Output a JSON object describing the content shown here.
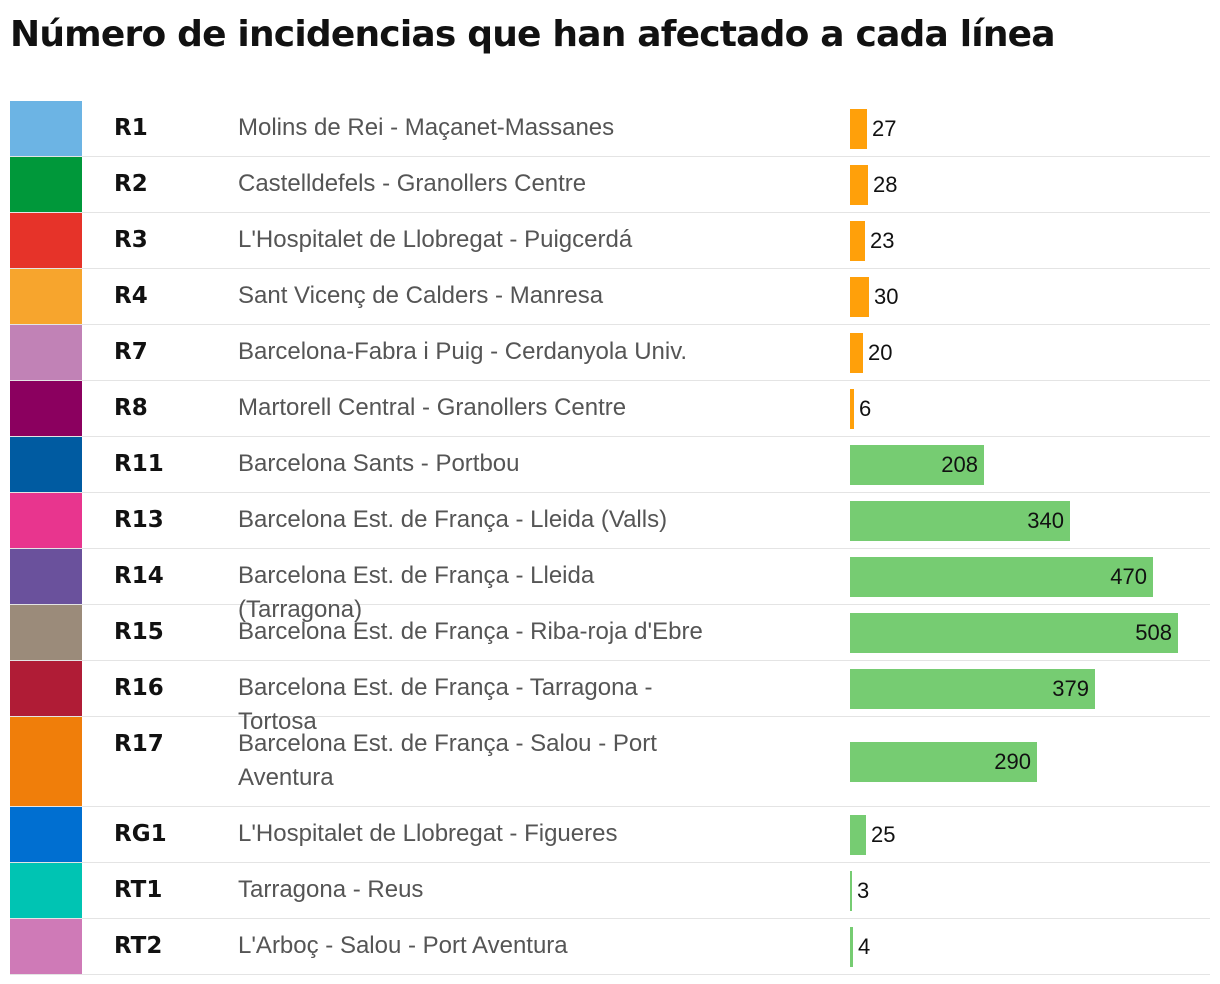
{
  "chart_data": {
    "type": "bar",
    "orientation": "horizontal",
    "title": "Número de incidencias que han afectado a cada línea",
    "categories": [
      "R1",
      "R2",
      "R3",
      "R4",
      "R7",
      "R8",
      "R11",
      "R13",
      "R14",
      "R15",
      "R16",
      "R17",
      "RG1",
      "RT1",
      "RT2"
    ],
    "descriptions": [
      "Molins de Rei - Maçanet-Massanes",
      "Castelldefels - Granollers Centre",
      "L'Hospitalet de Llobregat - Puigcerdá",
      "Sant Vicenç de Calders - Manresa",
      "Barcelona-Fabra i Puig - Cerdanyola Univ.",
      "Martorell Central - Granollers Centre",
      "Barcelona Sants - Portbou",
      "Barcelona Est. de França - Lleida (Valls)",
      "Barcelona Est. de França - Lleida (Tarragona)",
      "Barcelona Est. de França - Riba-roja d'Ebre",
      "Barcelona Est. de França - Tarragona - Tortosa",
      "Barcelona Est. de França - Salou - Port Aventura",
      "L'Hospitalet de Llobregat - Figueres",
      "Tarragona - Reus",
      "L'Arboç - Salou - Port Aventura"
    ],
    "values": [
      27,
      28,
      23,
      30,
      20,
      6,
      208,
      340,
      470,
      508,
      379,
      290,
      25,
      3,
      4
    ],
    "line_colors": [
      "#6cb4e4",
      "#00983a",
      "#e63329",
      "#f7a52d",
      "#c182b6",
      "#8b005f",
      "#005ba1",
      "#e8358e",
      "#6a519c",
      "#9b8b7a",
      "#b01c36",
      "#f07e0a",
      "#006fd1",
      "#00c4b3",
      "#cf7ab7"
    ],
    "bar_colors": [
      "#ffa00a",
      "#ffa00a",
      "#ffa00a",
      "#ffa00a",
      "#ffa00a",
      "#ffa00a",
      "#76cc72",
      "#76cc72",
      "#76cc72",
      "#76cc72",
      "#76cc72",
      "#76cc72",
      "#76cc72",
      "#76cc72",
      "#76cc72"
    ],
    "xlim": [
      0,
      508
    ],
    "grid": false,
    "legend": "none"
  }
}
